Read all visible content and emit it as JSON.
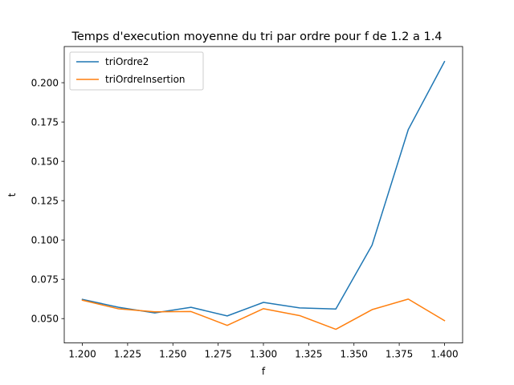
{
  "chart_data": {
    "type": "line",
    "title": "Temps d'execution moyenne du tri par ordre pour f de 1.2 a 1.4",
    "xlabel": "f",
    "ylabel": "t",
    "x": [
      1.2,
      1.22,
      1.24,
      1.26,
      1.28,
      1.3,
      1.32,
      1.34,
      1.36,
      1.38,
      1.4
    ],
    "xlim": [
      1.19,
      1.41
    ],
    "ylim": [
      0.0345,
      0.223
    ],
    "x_ticks": [
      1.2,
      1.225,
      1.25,
      1.275,
      1.3,
      1.325,
      1.35,
      1.375,
      1.4
    ],
    "x_tick_labels": [
      "1.200",
      "1.225",
      "1.250",
      "1.275",
      "1.300",
      "1.325",
      "1.350",
      "1.375",
      "1.400"
    ],
    "y_ticks": [
      0.05,
      0.075,
      0.1,
      0.125,
      0.15,
      0.175,
      0.2
    ],
    "y_tick_labels": [
      "0.050",
      "0.075",
      "0.100",
      "0.125",
      "0.150",
      "0.175",
      "0.200"
    ],
    "grid": false,
    "legend_position": "top-left",
    "series": [
      {
        "name": "triOrdre2",
        "color": "#1f77b4",
        "values": [
          0.0622,
          0.0572,
          0.0536,
          0.0572,
          0.0517,
          0.0603,
          0.0568,
          0.0561,
          0.0967,
          0.1702,
          0.2134
        ]
      },
      {
        "name": "triOrdreInsertion",
        "color": "#ff7f0e",
        "values": [
          0.0617,
          0.0562,
          0.0543,
          0.0545,
          0.0457,
          0.0563,
          0.0519,
          0.0432,
          0.0557,
          0.0624,
          0.0487
        ]
      }
    ]
  }
}
